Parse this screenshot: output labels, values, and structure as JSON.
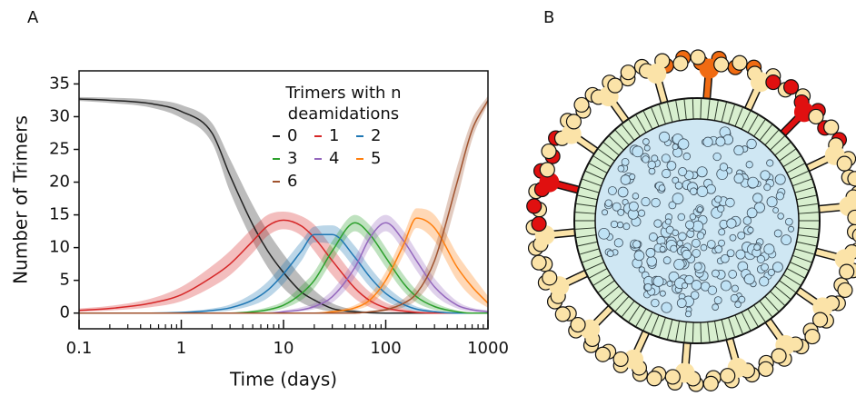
{
  "panel_labels": [
    "A",
    "B"
  ],
  "chart_data": {
    "type": "line",
    "x_label": "Time (days)",
    "y_label": "Number of Trimers",
    "legend_title": [
      "Trimers with n",
      "deamidations"
    ],
    "log_x": true,
    "xlim": [
      0.1,
      1000
    ],
    "ylim": [
      -2.4,
      37
    ],
    "xticks": [
      0.1,
      1,
      10,
      100,
      1000
    ],
    "yticks": [
      0,
      5,
      10,
      15,
      20,
      25,
      30,
      35
    ],
    "x": [
      0.1,
      0.2,
      0.5,
      1,
      2,
      3,
      5,
      7,
      10,
      15,
      20,
      30,
      50,
      70,
      100,
      150,
      200,
      300,
      500,
      700,
      1000
    ],
    "series": [
      {
        "name": "0",
        "color": "#222222",
        "values": [
          32.7,
          32.5,
          32,
          30.8,
          27.5,
          21,
          13.5,
          9.5,
          6.2,
          3.2,
          2,
          0.7,
          0.2,
          0.05,
          0,
          0,
          0,
          0,
          0,
          0,
          0
        ],
        "lower": [
          32.4,
          32.1,
          31.4,
          29.8,
          26,
          18.5,
          11,
          7,
          3.8,
          1.6,
          0.8,
          0.2,
          0,
          0,
          0,
          0,
          0,
          0,
          0,
          0,
          0
        ],
        "upper": [
          33,
          32.9,
          32.6,
          31.8,
          29,
          23.5,
          16.5,
          12.5,
          9,
          5.5,
          3.5,
          1.5,
          0.5,
          0.2,
          0.05,
          0,
          0,
          0,
          0,
          0,
          0
        ]
      },
      {
        "name": "1",
        "color": "#d62728",
        "values": [
          0.4,
          0.7,
          1.5,
          2.8,
          5.5,
          7.5,
          11,
          13.3,
          14.2,
          13.3,
          11.5,
          8,
          3.8,
          1.9,
          0.8,
          0.3,
          0.1,
          0,
          0,
          0,
          0
        ],
        "lower": [
          0.2,
          0.4,
          0.9,
          1.8,
          4,
          5.8,
          9.2,
          11.8,
          12.8,
          11.8,
          9.5,
          5.8,
          2.2,
          0.9,
          0.3,
          0.1,
          0,
          0,
          0,
          0,
          0
        ],
        "upper": [
          0.7,
          1.1,
          2.2,
          4,
          7.2,
          9.5,
          13,
          15,
          15.5,
          14.8,
          13.5,
          10,
          5.5,
          3.2,
          1.6,
          0.7,
          0.3,
          0.1,
          0,
          0,
          0
        ]
      },
      {
        "name": "2",
        "color": "#1f77b4",
        "values": [
          0,
          0,
          0,
          0.1,
          0.4,
          0.8,
          2,
          3.5,
          6,
          9.5,
          12,
          12,
          8.5,
          5.5,
          3,
          1.3,
          0.6,
          0.2,
          0,
          0,
          0
        ],
        "lower": [
          0,
          0,
          0,
          0,
          0.2,
          0.4,
          1.2,
          2.3,
          4.5,
          8,
          10.8,
          10.5,
          6.8,
          4,
          1.9,
          0.7,
          0.3,
          0.1,
          0,
          0,
          0
        ],
        "upper": [
          0,
          0,
          0,
          0.2,
          0.7,
          1.3,
          3,
          4.8,
          7.6,
          11,
          13.2,
          13.4,
          10.2,
          7,
          4.2,
          2,
          1,
          0.4,
          0.1,
          0,
          0
        ]
      },
      {
        "name": "3",
        "color": "#2ca02c",
        "values": [
          0,
          0,
          0,
          0,
          0,
          0,
          0.2,
          0.5,
          1.2,
          3,
          5,
          9.5,
          13.8,
          12,
          8.5,
          4.5,
          2.5,
          1,
          0.2,
          0,
          0
        ],
        "lower": [
          0,
          0,
          0,
          0,
          0,
          0,
          0.1,
          0.2,
          0.7,
          2,
          3.8,
          8,
          12.5,
          10.5,
          7,
          3.3,
          1.6,
          0.5,
          0.1,
          0,
          0
        ],
        "upper": [
          0,
          0,
          0,
          0,
          0,
          0,
          0.4,
          0.9,
          1.8,
          4.2,
          6.3,
          11,
          15,
          13.4,
          10,
          5.8,
          3.5,
          1.6,
          0.4,
          0.1,
          0
        ]
      },
      {
        "name": "4",
        "color": "#9467bd",
        "values": [
          0,
          0,
          0,
          0,
          0,
          0,
          0,
          0,
          0.2,
          0.5,
          1,
          2.5,
          7,
          11.5,
          13.8,
          11,
          8,
          4,
          1.2,
          0.5,
          0.2
        ],
        "lower": [
          0,
          0,
          0,
          0,
          0,
          0,
          0,
          0,
          0.1,
          0.3,
          0.6,
          1.6,
          5.5,
          10,
          12.5,
          9.5,
          6.5,
          2.8,
          0.7,
          0.2,
          0.1
        ],
        "upper": [
          0,
          0,
          0,
          0,
          0,
          0,
          0,
          0,
          0.4,
          0.9,
          1.5,
          3.5,
          8.5,
          13,
          15,
          12.5,
          9.5,
          5.3,
          1.8,
          0.8,
          0.4
        ]
      },
      {
        "name": "5",
        "color": "#ff7f0e",
        "values": [
          0,
          0,
          0,
          0,
          0,
          0,
          0,
          0,
          0,
          0,
          0,
          0.2,
          0.8,
          2,
          5,
          10.5,
          14.5,
          13,
          7,
          4,
          1.5
        ],
        "lower": [
          0,
          0,
          0,
          0,
          0,
          0,
          0,
          0,
          0,
          0,
          0,
          0.1,
          0.5,
          1.3,
          3.8,
          9,
          13,
          11,
          5,
          2.4,
          0.8
        ],
        "upper": [
          0,
          0,
          0,
          0,
          0,
          0,
          0,
          0,
          0,
          0,
          0,
          0.4,
          1.2,
          2.8,
          6.3,
          12,
          16,
          15,
          9,
          5.8,
          2.6
        ]
      },
      {
        "name": "6",
        "color": "#a0522d",
        "values": [
          0,
          0,
          0,
          0,
          0,
          0,
          0,
          0,
          0,
          0,
          0,
          0,
          0,
          0.2,
          0.5,
          1.5,
          3,
          8,
          20,
          28,
          32.5
        ],
        "lower": [
          0,
          0,
          0,
          0,
          0,
          0,
          0,
          0,
          0,
          0,
          0,
          0,
          0,
          0.1,
          0.3,
          0.9,
          2,
          6,
          17.5,
          26.5,
          32
        ],
        "upper": [
          0,
          0,
          0,
          0,
          0,
          0,
          0,
          0,
          0,
          0,
          0,
          0,
          0,
          0.3,
          0.8,
          2.2,
          4.2,
          10,
          22.5,
          29.5,
          33.2
        ]
      }
    ]
  }
}
